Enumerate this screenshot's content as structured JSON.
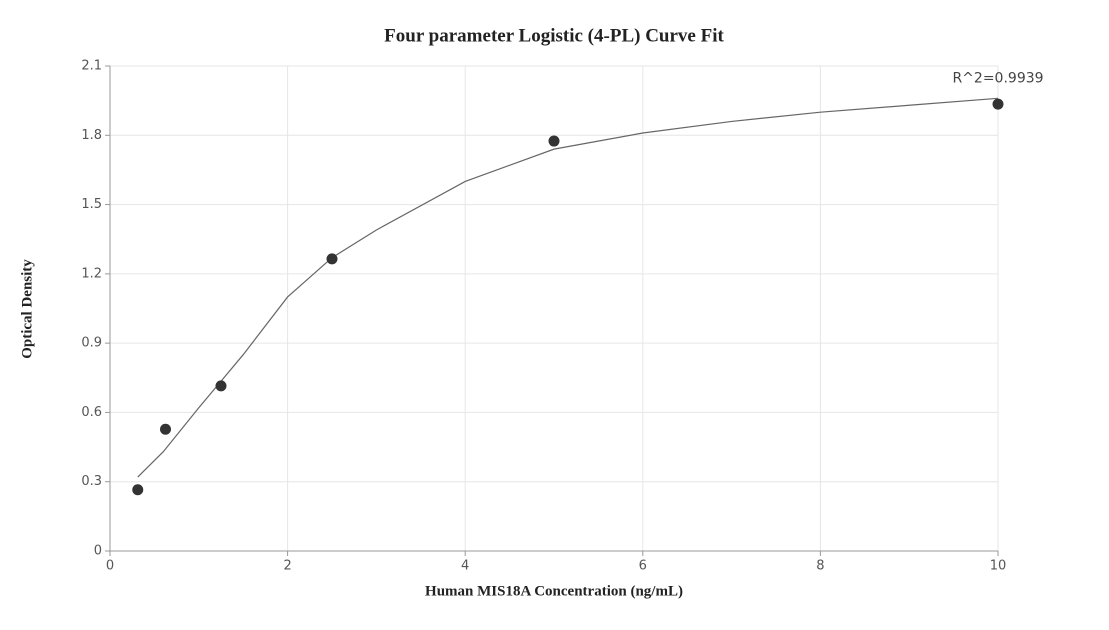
{
  "chart_data": {
    "type": "scatter",
    "title": "Four parameter Logistic (4-PL) Curve Fit",
    "xlabel": "Human MIS18A Concentration (ng/mL)",
    "ylabel": "Optical Density",
    "annotation": "R^2=0.9939",
    "xlim": [
      0,
      10
    ],
    "xticks": [
      0,
      2,
      4,
      6,
      8,
      10
    ],
    "ylim": [
      0,
      2.1
    ],
    "yticks": [
      0,
      0.3,
      0.6,
      0.9,
      1.2,
      1.5,
      1.8,
      2.1
    ],
    "grid": true,
    "series": [
      {
        "type": "scatter",
        "color": "#333333",
        "x": [
          0.3125,
          0.625,
          1.25,
          2.5,
          5,
          10
        ],
        "values": [
          0.265,
          0.527,
          0.715,
          1.265,
          1.775,
          1.935
        ]
      },
      {
        "type": "line",
        "color": "#666666",
        "x": [
          0.3125,
          0.6,
          1.0,
          1.5,
          2.0,
          2.5,
          3.0,
          4.0,
          5.0,
          6.0,
          7.0,
          8.0,
          9.0,
          10.0
        ],
        "values": [
          0.32,
          0.43,
          0.62,
          0.85,
          1.1,
          1.27,
          1.39,
          1.6,
          1.74,
          1.81,
          1.86,
          1.9,
          1.93,
          1.96
        ]
      }
    ]
  }
}
